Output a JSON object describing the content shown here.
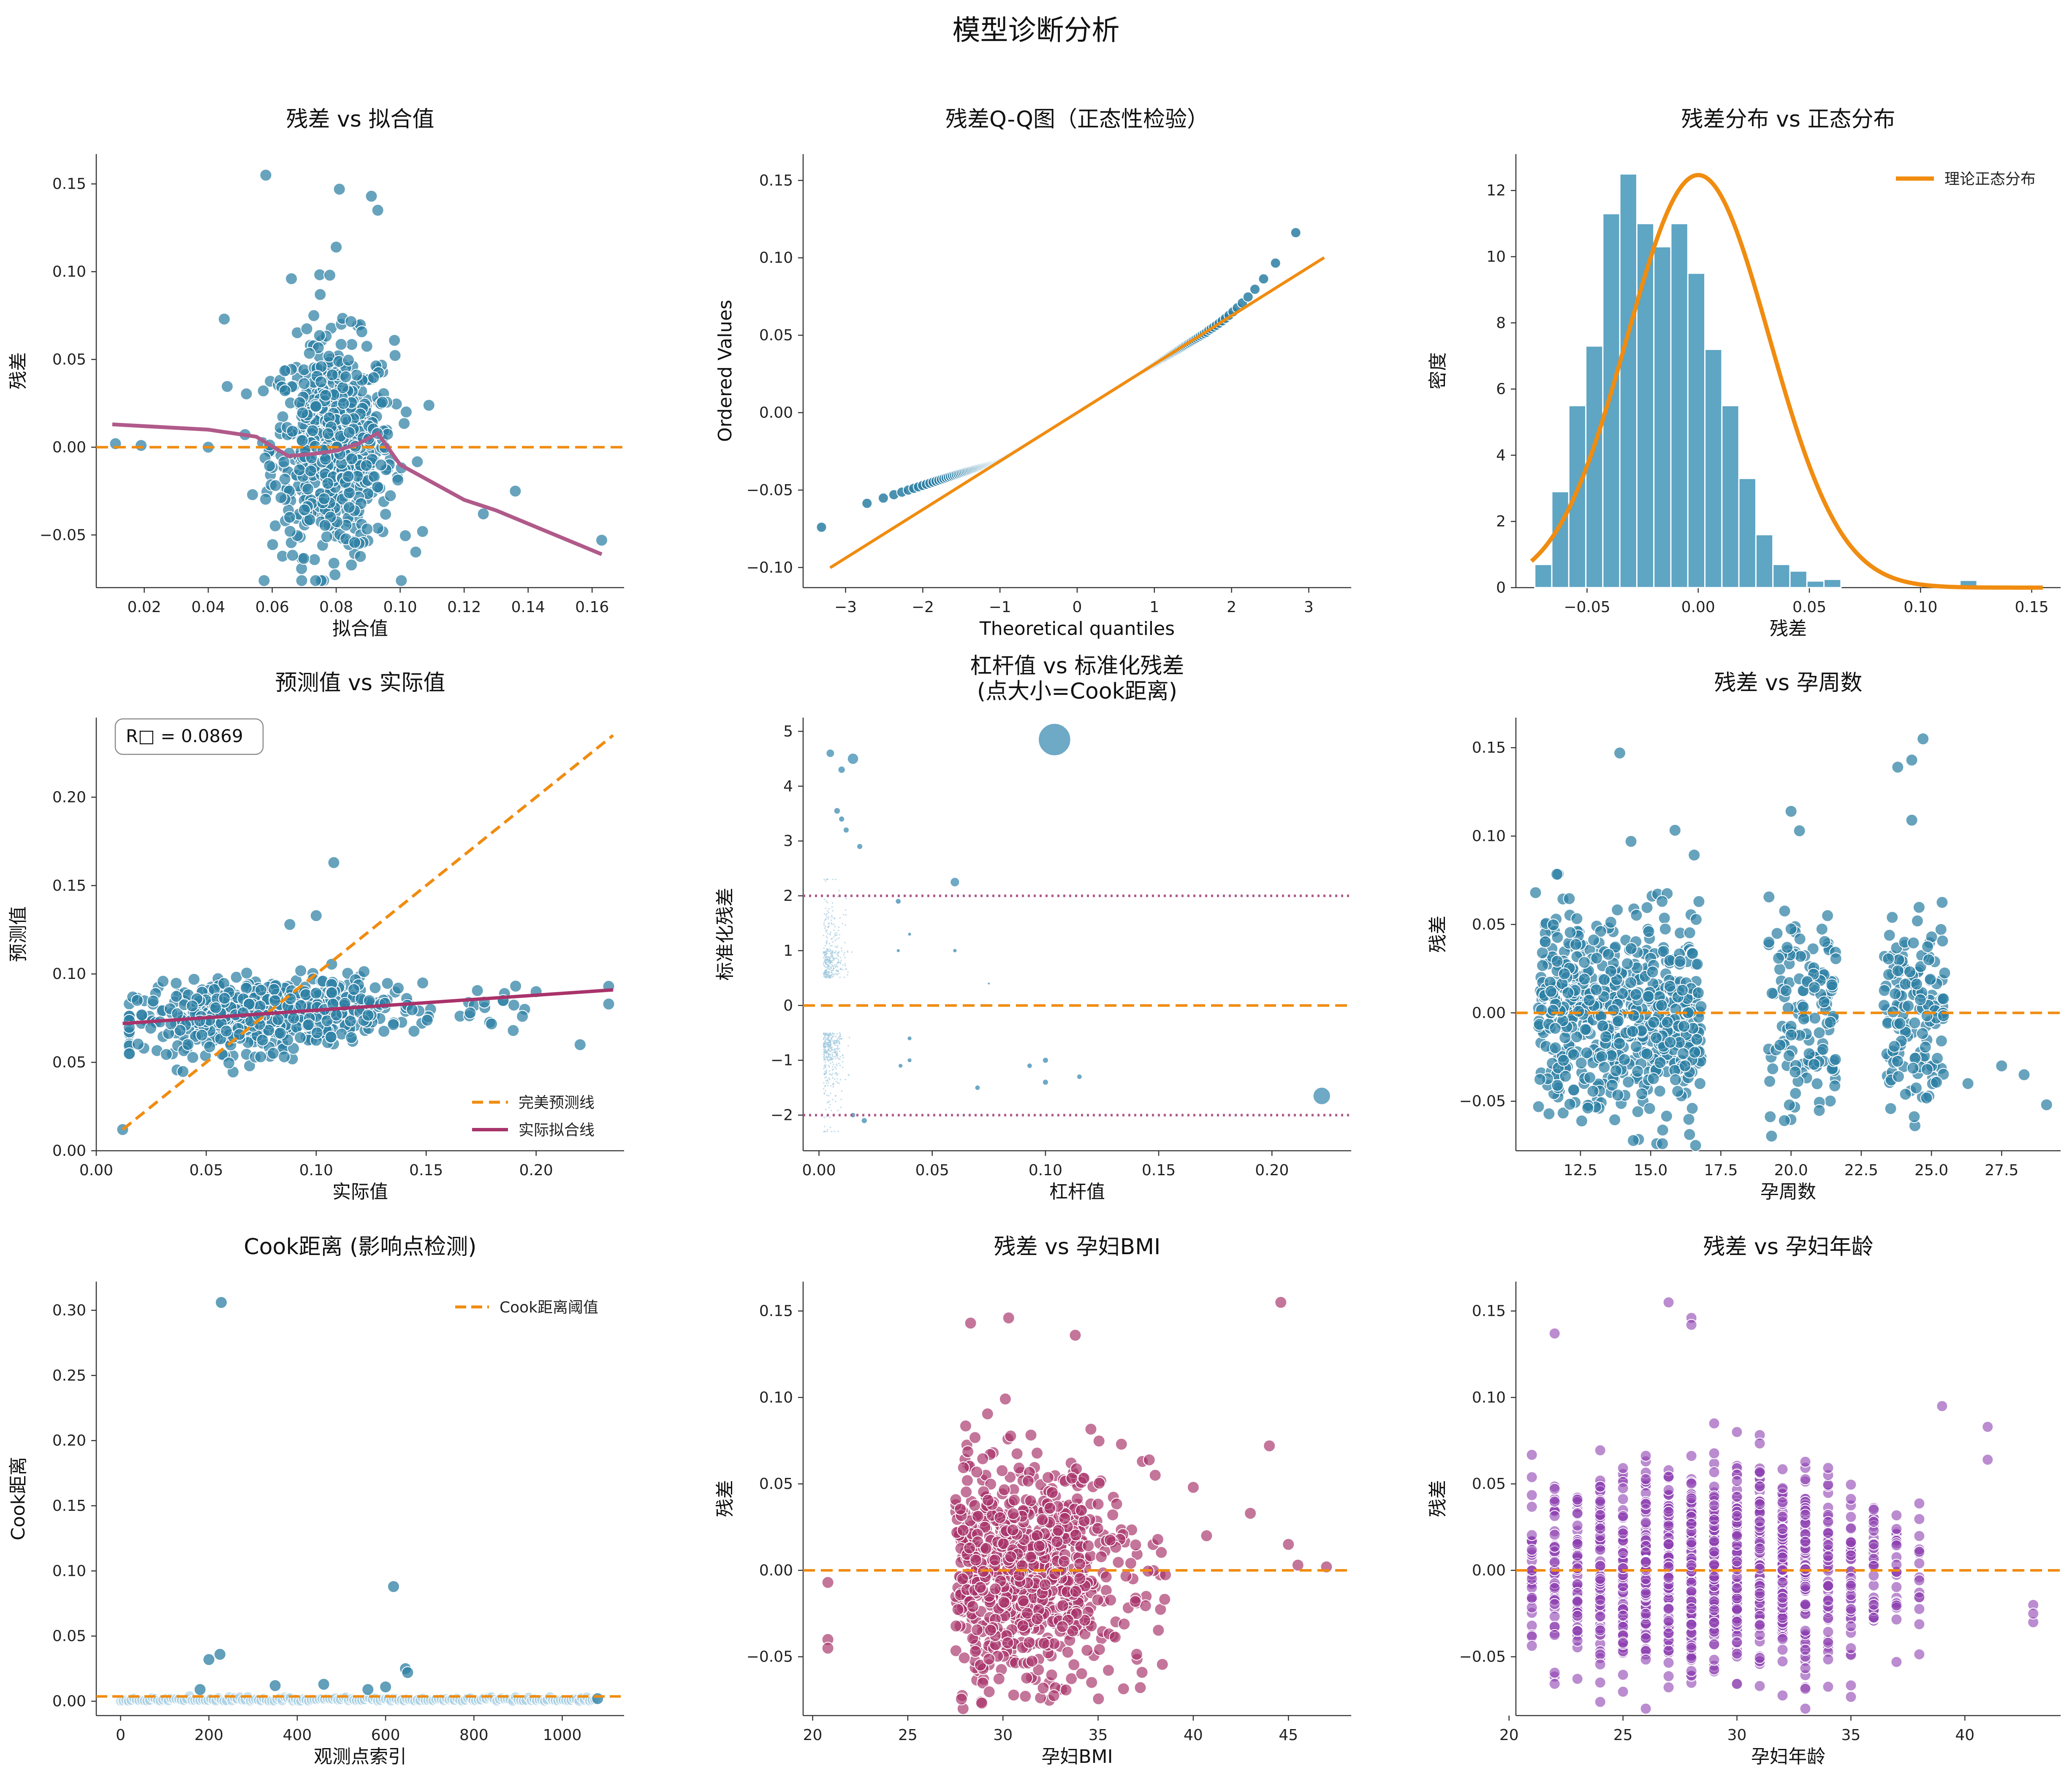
{
  "title": "模型诊断分析",
  "colors": {
    "teal": "#2c7fa3",
    "orange": "#f08c10",
    "plum": "#b05a8a",
    "magenta": "#a8336a",
    "purple": "#8e3fb0"
  },
  "chart_data": [
    {
      "id": "resid_fitted",
      "type": "scatter",
      "title": "残差 vs 拟合值",
      "xlabel": "拟合值",
      "ylabel": "残差",
      "xlim": [
        0.005,
        0.17
      ],
      "ylim": [
        -0.08,
        0.167
      ],
      "xticks": [
        0.02,
        0.04,
        0.06,
        0.08,
        0.1,
        0.12,
        0.14,
        0.16
      ],
      "xtick_labels": [
        "0.02",
        "0.04",
        "0.06",
        "0.08",
        "0.10",
        "0.12",
        "0.14",
        "0.16"
      ],
      "yticks": [
        -0.05,
        0,
        0.05,
        0.1,
        0.15
      ],
      "ytick_labels": [
        "−0.05",
        "0.00",
        "0.05",
        "0.10",
        "0.15"
      ],
      "hline": 0,
      "lowess": {
        "x": [
          0.01,
          0.04,
          0.055,
          0.065,
          0.072,
          0.08,
          0.087,
          0.093,
          0.1,
          0.12,
          0.13,
          0.163
        ],
        "y": [
          0.013,
          0.01,
          0.006,
          -0.005,
          -0.004,
          -0.002,
          0.002,
          0.008,
          -0.01,
          -0.03,
          -0.036,
          -0.061
        ]
      },
      "outliers": [
        [
          0.011,
          0.002
        ],
        [
          0.019,
          0.001
        ],
        [
          0.058,
          0.155
        ],
        [
          0.081,
          0.147
        ],
        [
          0.091,
          0.143
        ],
        [
          0.093,
          0.135
        ],
        [
          0.045,
          0.073
        ],
        [
          0.08,
          0.114
        ],
        [
          0.078,
          0.098
        ],
        [
          0.126,
          -0.038
        ],
        [
          0.163,
          -0.053
        ],
        [
          0.136,
          -0.025
        ],
        [
          0.107,
          -0.048
        ],
        [
          0.04,
          0.0
        ],
        [
          0.066,
          0.096
        ],
        [
          0.075,
          0.087
        ]
      ]
    },
    {
      "id": "qq",
      "type": "scatter",
      "title": "残差Q-Q图（正态性检验）",
      "xlabel": "Theoretical quantiles",
      "ylabel": "Ordered Values",
      "xlim": [
        -3.55,
        3.55
      ],
      "ylim": [
        -0.113,
        0.167
      ],
      "xticks": [
        -3,
        -2,
        -1,
        0,
        1,
        2,
        3
      ],
      "xtick_labels": [
        "−3",
        "−2",
        "−1",
        "0",
        "1",
        "2",
        "3"
      ],
      "yticks": [
        -0.1,
        -0.05,
        0,
        0.05,
        0.1,
        0.15
      ],
      "ytick_labels": [
        "−0.10",
        "−0.05",
        "0.00",
        "0.05",
        "0.10",
        "0.15"
      ],
      "line": {
        "slope": 0.0313,
        "intercept": 0.0
      },
      "n": 1080
    },
    {
      "id": "hist",
      "type": "bar",
      "title": "残差分布 vs 正态分布",
      "xlabel": "残差",
      "ylabel": "密度",
      "xlim": [
        -0.082,
        0.163
      ],
      "ylim": [
        0,
        13.1
      ],
      "xticks": [
        -0.05,
        0,
        0.05,
        0.1,
        0.15
      ],
      "xtick_labels": [
        "−0.05",
        "0.00",
        "0.05",
        "0.10",
        "0.15"
      ],
      "yticks": [
        0,
        2,
        4,
        6,
        8,
        10,
        12
      ],
      "ytick_labels": [
        "0",
        "2",
        "4",
        "6",
        "8",
        "10",
        "12"
      ],
      "bin_start": -0.0735,
      "bin_width": 0.00765,
      "values": [
        0.7,
        2.9,
        5.5,
        7.3,
        11.3,
        12.5,
        11.0,
        10.3,
        11.0,
        9.5,
        7.2,
        5.5,
        3.3,
        1.6,
        0.7,
        0.5,
        0.2,
        0.25,
        0,
        0,
        0,
        0,
        0,
        0,
        0,
        0.22,
        0
      ],
      "normal": {
        "mean": 0.0,
        "sd": 0.032
      },
      "legend": "理论正态分布"
    },
    {
      "id": "pred_actual",
      "type": "scatter",
      "title": "预测值 vs 实际值",
      "xlabel": "实际值",
      "ylabel": "预测值",
      "xlim": [
        0,
        0.24
      ],
      "ylim": [
        0,
        0.245
      ],
      "xticks": [
        0,
        0.05,
        0.1,
        0.15,
        0.2
      ],
      "xtick_labels": [
        "0.00",
        "0.05",
        "0.10",
        "0.15",
        "0.20"
      ],
      "yticks": [
        0,
        0.05,
        0.1,
        0.15,
        0.2
      ],
      "ytick_labels": [
        "0.00",
        "0.05",
        "0.10",
        "0.15",
        "0.20"
      ],
      "r2_text": "R□ = 0.0869",
      "perfect_line": [
        [
          0.012,
          0.012
        ],
        [
          0.235,
          0.235
        ]
      ],
      "fit_line": [
        [
          0.012,
          0.072
        ],
        [
          0.235,
          0.091
        ]
      ],
      "legend": [
        "完美预测线",
        "实际拟合线"
      ],
      "outliers": [
        [
          0.108,
          0.163
        ],
        [
          0.012,
          0.012
        ],
        [
          0.1,
          0.133
        ],
        [
          0.088,
          0.128
        ],
        [
          0.233,
          0.083
        ],
        [
          0.233,
          0.093
        ],
        [
          0.22,
          0.06
        ],
        [
          0.185,
          0.085
        ],
        [
          0.2,
          0.09
        ],
        [
          0.17,
          0.078
        ]
      ]
    },
    {
      "id": "leverage",
      "type": "scatter",
      "title": "杠杆值 vs 标准化残差",
      "subtitle": "(点大小=Cook距离)",
      "xlabel": "杠杆值",
      "ylabel": "标准化残差",
      "xlim": [
        -0.007,
        0.235
      ],
      "ylim": [
        -2.65,
        5.25
      ],
      "xticks": [
        0,
        0.05,
        0.1,
        0.15,
        0.2
      ],
      "xtick_labels": [
        "0.00",
        "0.05",
        "0.10",
        "0.15",
        "0.20"
      ],
      "yticks": [
        -2,
        -1,
        0,
        1,
        2,
        3,
        4,
        5
      ],
      "ytick_labels": [
        "−2",
        "−1",
        "0",
        "1",
        "2",
        "3",
        "4",
        "5"
      ],
      "hlines_dotted": [
        2,
        -2
      ],
      "hline": 0,
      "points": [
        [
          0.104,
          4.85,
          0.306
        ],
        [
          0.222,
          -1.65,
          0.088
        ],
        [
          0.015,
          4.5,
          0.036
        ],
        [
          0.06,
          2.25,
          0.025
        ],
        [
          0.005,
          4.6,
          0.02
        ],
        [
          0.01,
          4.3,
          0.015
        ],
        [
          0.008,
          3.55,
          0.012
        ],
        [
          0.01,
          3.4,
          0.01
        ],
        [
          0.012,
          3.2,
          0.01
        ],
        [
          0.018,
          2.9,
          0.01
        ],
        [
          0.035,
          1.9,
          0.009
        ],
        [
          0.1,
          -1.0,
          0.01
        ],
        [
          0.1,
          -1.4,
          0.01
        ],
        [
          0.093,
          -1.1,
          0.008
        ],
        [
          0.115,
          -1.3,
          0.008
        ],
        [
          0.07,
          -1.5,
          0.008
        ],
        [
          0.04,
          -1.0,
          0.006
        ],
        [
          0.036,
          -1.1,
          0.006
        ],
        [
          0.04,
          -0.6,
          0.006
        ],
        [
          0.035,
          1.0,
          0.004
        ],
        [
          0.06,
          1.0,
          0.005
        ],
        [
          0.075,
          0.4,
          0.002
        ],
        [
          0.02,
          -2.1,
          0.01
        ],
        [
          0.015,
          -2.0,
          0.008
        ],
        [
          0.04,
          1.3,
          0.004
        ]
      ],
      "n": 1080
    },
    {
      "id": "resid_weeks",
      "type": "scatter",
      "title": "残差 vs 孕周数",
      "xlabel": "孕周数",
      "ylabel": "残差",
      "xlim": [
        10.2,
        29.6
      ],
      "ylim": [
        -0.078,
        0.167
      ],
      "xticks": [
        12.5,
        15.0,
        17.5,
        20.0,
        22.5,
        25.0,
        27.5
      ],
      "xtick_labels": [
        "12.5",
        "15.0",
        "17.5",
        "20.0",
        "22.5",
        "25.0",
        "27.5"
      ],
      "yticks": [
        -0.05,
        0,
        0.05,
        0.1,
        0.15
      ],
      "ytick_labels": [
        "−0.05",
        "0.00",
        "0.05",
        "0.10",
        "0.15"
      ],
      "hline": 0,
      "outliers": [
        [
          13.9,
          0.147
        ],
        [
          24.7,
          0.155
        ],
        [
          24.3,
          0.143
        ],
        [
          23.8,
          0.139
        ],
        [
          20.0,
          0.114
        ],
        [
          24.3,
          0.109
        ],
        [
          14.3,
          0.097
        ],
        [
          20.3,
          0.103
        ],
        [
          29.1,
          -0.052
        ],
        [
          27.5,
          -0.03
        ],
        [
          28.3,
          -0.035
        ],
        [
          26.3,
          -0.04
        ],
        [
          10.9,
          0.068
        ],
        [
          16.6,
          -0.075
        ],
        [
          21.3,
          0.055
        ]
      ]
    },
    {
      "id": "cook",
      "type": "scatter",
      "title": "Cook距离 (影响点检测)",
      "xlabel": "观测点索引",
      "ylabel": "Cook距离",
      "xlim": [
        -55,
        1140
      ],
      "ylim": [
        -0.011,
        0.322
      ],
      "xticks": [
        0,
        200,
        400,
        600,
        800,
        1000
      ],
      "xtick_labels": [
        "0",
        "200",
        "400",
        "600",
        "800",
        "1000"
      ],
      "yticks": [
        0,
        0.05,
        0.1,
        0.15,
        0.2,
        0.25,
        0.3
      ],
      "ytick_labels": [
        "0.00",
        "0.05",
        "0.10",
        "0.15",
        "0.20",
        "0.25",
        "0.30"
      ],
      "threshold": 0.0037,
      "legend": "Cook距离阈值",
      "peaks": [
        [
          228,
          0.306
        ],
        [
          618,
          0.088
        ],
        [
          200,
          0.032
        ],
        [
          225,
          0.036
        ],
        [
          645,
          0.025
        ],
        [
          650,
          0.022
        ],
        [
          180,
          0.009
        ],
        [
          350,
          0.012
        ],
        [
          460,
          0.013
        ],
        [
          560,
          0.009
        ],
        [
          600,
          0.011
        ],
        [
          1080,
          0.002
        ]
      ],
      "n": 1080
    },
    {
      "id": "resid_bmi",
      "type": "scatter",
      "title": "残差 vs 孕妇BMI",
      "xlabel": "孕妇BMI",
      "ylabel": "残差",
      "xlim": [
        19.5,
        48.3
      ],
      "ylim": [
        -0.084,
        0.167
      ],
      "xticks": [
        20,
        25,
        30,
        35,
        40,
        45
      ],
      "xtick_labels": [
        "20",
        "25",
        "30",
        "35",
        "40",
        "45"
      ],
      "yticks": [
        -0.05,
        0,
        0.05,
        0.1,
        0.15
      ],
      "ytick_labels": [
        "−0.05",
        "0.00",
        "0.05",
        "0.10",
        "0.15"
      ],
      "hline": 0,
      "outliers": [
        [
          20.8,
          -0.007
        ],
        [
          20.8,
          -0.04
        ],
        [
          20.8,
          -0.045
        ],
        [
          44.6,
          0.155
        ],
        [
          28.3,
          0.143
        ],
        [
          30.3,
          0.146
        ],
        [
          33.8,
          0.136
        ],
        [
          44.0,
          0.072
        ],
        [
          47.0,
          0.002
        ],
        [
          45.5,
          0.003
        ],
        [
          43.0,
          0.033
        ],
        [
          45.0,
          0.015
        ],
        [
          40.7,
          0.02
        ],
        [
          40.0,
          0.048
        ],
        [
          38.0,
          0.055
        ]
      ]
    },
    {
      "id": "resid_age",
      "type": "scatter",
      "title": "残差 vs 孕妇年龄",
      "xlabel": "孕妇年龄",
      "ylabel": "残差",
      "xlim": [
        20.3,
        44.2
      ],
      "ylim": [
        -0.084,
        0.167
      ],
      "xticks": [
        20,
        25,
        30,
        35,
        40
      ],
      "xtick_labels": [
        "20",
        "25",
        "30",
        "35",
        "40"
      ],
      "yticks": [
        -0.05,
        0,
        0.05,
        0.1,
        0.15
      ],
      "ytick_labels": [
        "−0.05",
        "0.00",
        "0.05",
        "0.10",
        "0.15"
      ],
      "hline": 0,
      "outliers": [
        [
          22,
          0.137
        ],
        [
          27,
          0.155
        ],
        [
          28,
          0.146
        ],
        [
          28,
          0.142
        ],
        [
          39,
          0.095
        ],
        [
          41,
          0.083
        ],
        [
          41,
          0.064
        ],
        [
          43,
          -0.03
        ],
        [
          43,
          -0.02
        ],
        [
          43,
          -0.025
        ]
      ]
    }
  ]
}
